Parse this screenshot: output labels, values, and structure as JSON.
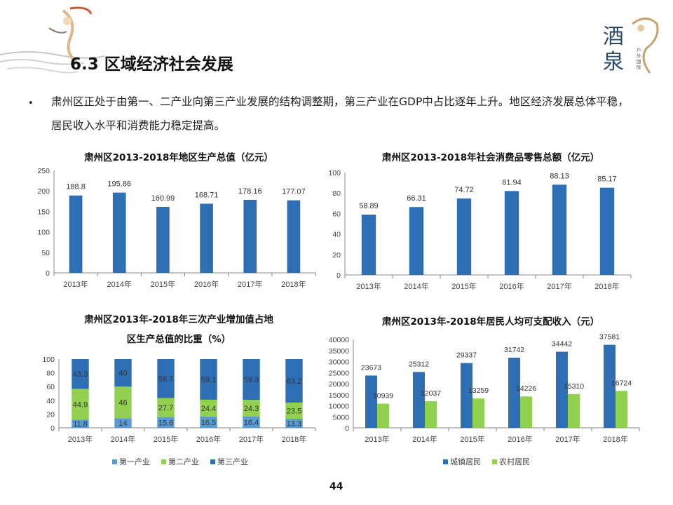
{
  "page": {
    "title": "6.3 区域经济社会发展",
    "bullet": "肃州区正处于由第一、二产业向第三产业发展的结构调整期，第三产业在GDP中占比逐年上升。地区经济发展总体平稳，居民收入水平和消费能力稳定提高。",
    "page_number": "44",
    "logo_text": "酒泉",
    "logo_subtext": "户外国际目的地"
  },
  "chart_data": [
    {
      "type": "bar",
      "title": "肃州区2013-2018年地区生产总值（亿元）",
      "categories": [
        "2013年",
        "2014年",
        "2015年",
        "2016年",
        "2017年",
        "2018年"
      ],
      "values": [
        188.8,
        195.86,
        160.99,
        168.71,
        178.16,
        177.07
      ],
      "labels": [
        "188.8",
        "195.86",
        "160.99",
        "168.71",
        "178.16",
        "177.07"
      ],
      "ylim": [
        0,
        250
      ],
      "yticks": [
        0,
        50,
        100,
        150,
        200,
        250
      ],
      "color": "#2E6EB5"
    },
    {
      "type": "bar",
      "title": "肃州区2013-2018年社会消费品零售总额（亿元）",
      "categories": [
        "2013年",
        "2014年",
        "2015年",
        "2016年",
        "2017年",
        "2018年"
      ],
      "values": [
        58.89,
        66.31,
        74.72,
        81.94,
        88.13,
        85.17
      ],
      "labels": [
        "58.89",
        "66.31",
        "74.72",
        "81.94",
        "88.13",
        "85.17"
      ],
      "ylim": [
        0,
        100
      ],
      "yticks": [
        0,
        20,
        40,
        60,
        80,
        100
      ],
      "color": "#2E6EB5"
    },
    {
      "type": "bar",
      "stacked": true,
      "title_lines": [
        "肃州区2013年-2018年三次产业增加值占地",
        "区生产总值的比重（%）"
      ],
      "categories": [
        "2013年",
        "2014年",
        "2015年",
        "2016年",
        "2017年",
        "2018年"
      ],
      "series": [
        {
          "name": "第一产业",
          "values": [
            11.8,
            14,
            15.6,
            16.5,
            16.4,
            13.3
          ],
          "labels": [
            "11.8",
            "14",
            "15.6",
            "16.5",
            "16.4",
            "13.3"
          ],
          "color": "#5B9BD5"
        },
        {
          "name": "第二产业",
          "values": [
            44.9,
            46,
            27.7,
            24.4,
            24.3,
            23.5
          ],
          "labels": [
            "44.9",
            "46",
            "27.7",
            "24.4",
            "24.3",
            "23.5"
          ],
          "color": "#92D050"
        },
        {
          "name": "第三产业",
          "values": [
            43.3,
            40,
            56.7,
            59.1,
            59.3,
            63.2
          ],
          "labels": [
            "43.3",
            "40",
            "56.7",
            "59.1",
            "59.3",
            "63.2"
          ],
          "color": "#2E6EB5"
        }
      ],
      "ylim": [
        0,
        100
      ],
      "yticks": [
        0,
        20,
        40,
        60,
        80,
        100
      ],
      "legend": "bottom"
    },
    {
      "type": "bar",
      "title": "肃州区2013年-2018年居民人均可支配收入（元）",
      "categories": [
        "2013年",
        "2014年",
        "2015年",
        "2016年",
        "2017年",
        "2018年"
      ],
      "series": [
        {
          "name": "城镇居民",
          "values": [
            23673,
            25312,
            29337,
            31742,
            34442,
            37581
          ],
          "labels": [
            "23673",
            "25312",
            "29337",
            "31742",
            "34442",
            "37581"
          ],
          "color": "#2E6EB5"
        },
        {
          "name": "农村居民",
          "values": [
            10939,
            12037,
            13259,
            14226,
            15310,
            16724
          ],
          "labels": [
            "10939",
            "12037",
            "13259",
            "14226",
            "15310",
            "16724"
          ],
          "color": "#92D050"
        }
      ],
      "ylim": [
        0,
        40000
      ],
      "yticks": [
        0,
        5000,
        10000,
        15000,
        20000,
        25000,
        30000,
        35000,
        40000
      ],
      "legend": "bottom"
    }
  ]
}
